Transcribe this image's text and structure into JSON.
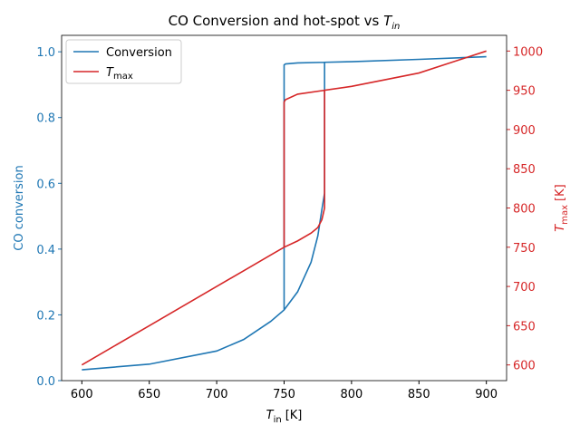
{
  "chart_data": {
    "type": "line",
    "title": "CO Conversion and hot-spot vs ",
    "title_var": "T",
    "title_sub": "in",
    "xlabel": "T",
    "xlabel_sub": "in",
    "xlabel_unit": "[K]",
    "ylabel": "CO conversion",
    "y2label": "T",
    "y2label_sub": "max",
    "y2label_unit": "[K]",
    "x": [
      600,
      650,
      700,
      720,
      740,
      750,
      760,
      770,
      775,
      778,
      780,
      780,
      800,
      850,
      900,
      850,
      800,
      780,
      760,
      751,
      750,
      750
    ],
    "series": [
      {
        "name": "Conversion",
        "color": "#1f77b4",
        "values": [
          0.033,
          0.05,
          0.09,
          0.125,
          0.18,
          0.215,
          0.27,
          0.36,
          0.44,
          0.52,
          0.57,
          0.968,
          0.97,
          0.977,
          0.985,
          0.977,
          0.97,
          0.968,
          0.966,
          0.963,
          0.96,
          0.215
        ]
      },
      {
        "name": "T",
        "name_sub": "max",
        "color": "#d62728",
        "axis": "y2",
        "values": [
          600,
          650,
          700,
          720,
          740,
          750,
          758,
          768,
          775,
          785,
          800,
          950,
          955,
          972,
          1000,
          972,
          955,
          950,
          945,
          938,
          935,
          750
        ]
      }
    ],
    "xlim": [
      585,
      915
    ],
    "xticks": [
      600,
      650,
      700,
      750,
      800,
      850,
      900
    ],
    "ylim": [
      0,
      1.05
    ],
    "yticks": [
      {
        "value": 0,
        "label": "0.0"
      },
      0.2,
      0.4,
      0.6,
      0.8,
      {
        "value": 1,
        "label": "1.0"
      }
    ],
    "y2lim": [
      580,
      1020
    ],
    "y2ticks": [
      600,
      650,
      700,
      750,
      800,
      850,
      900,
      950,
      1000
    ],
    "legend": "upper left"
  }
}
